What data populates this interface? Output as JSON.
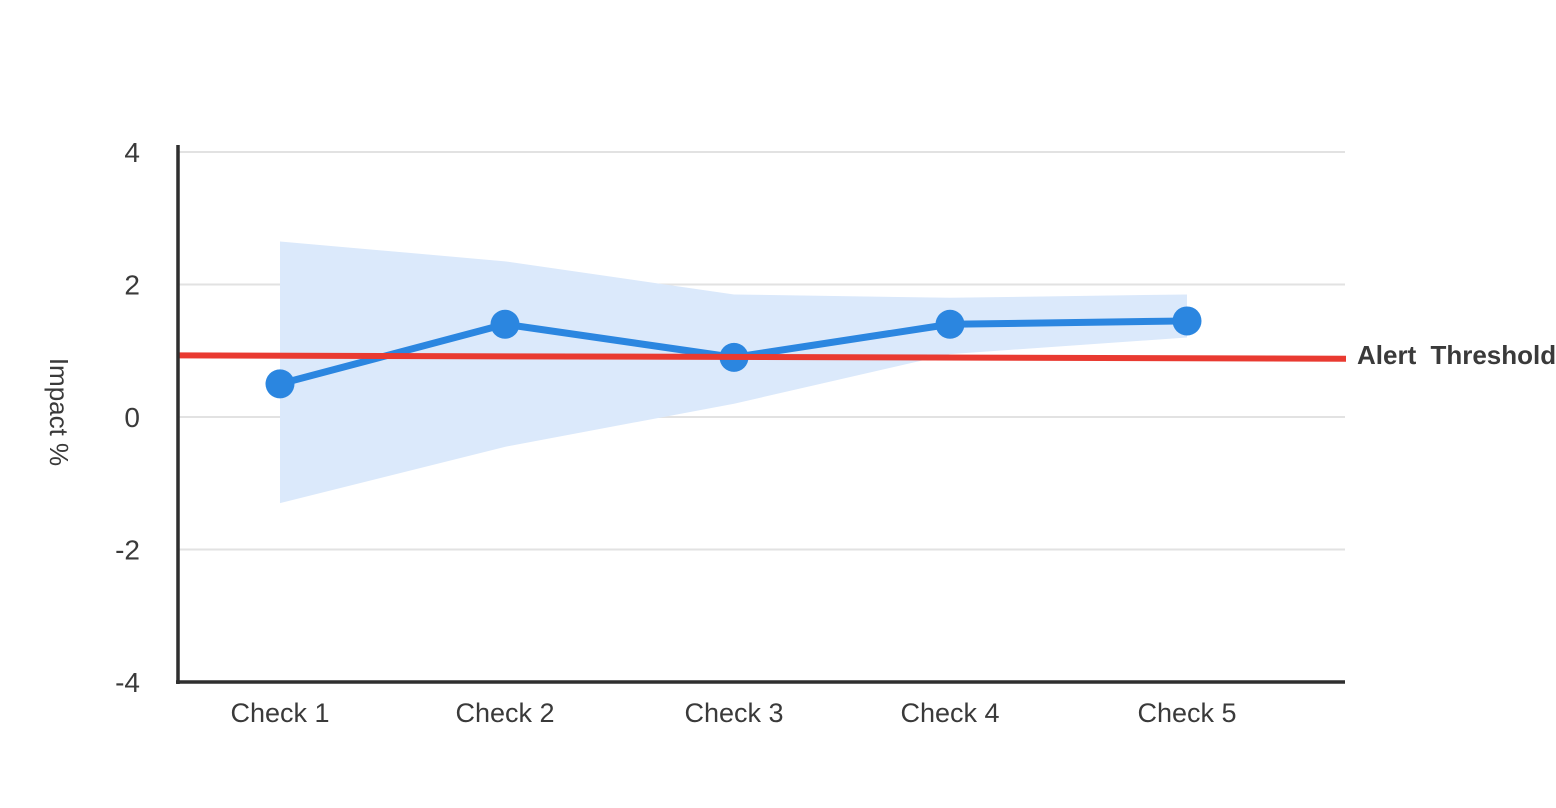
{
  "chart_data": {
    "type": "line",
    "categories": [
      "Check 1",
      "Check 2",
      "Check 3",
      "Check 4",
      "Check 5"
    ],
    "series": [
      {
        "name": "impact",
        "values": [
          0.5,
          1.4,
          0.9,
          1.4,
          1.45
        ]
      }
    ],
    "confidence_band": {
      "upper": [
        2.65,
        2.35,
        1.85,
        1.8,
        1.85
      ],
      "lower": [
        -1.3,
        -0.45,
        0.2,
        0.95,
        1.2
      ]
    },
    "threshold": {
      "label": "Alert Threshold",
      "value": 0.9,
      "start_value": 0.93,
      "end_value": 0.88
    },
    "ylabel": "Impact %",
    "yticks": [
      4,
      2,
      0,
      -2,
      -4
    ],
    "ylim": [
      -4,
      4
    ],
    "grid": true,
    "legend": "none",
    "colors": {
      "line": "#2b86e0",
      "marker": "#2b86e0",
      "band": "#dbe9fb",
      "threshold": "#e93a31",
      "grid": "#e2e2e2",
      "axis": "#2f2f2f",
      "text": "#3a3a3a",
      "background": "#ffffff"
    }
  }
}
